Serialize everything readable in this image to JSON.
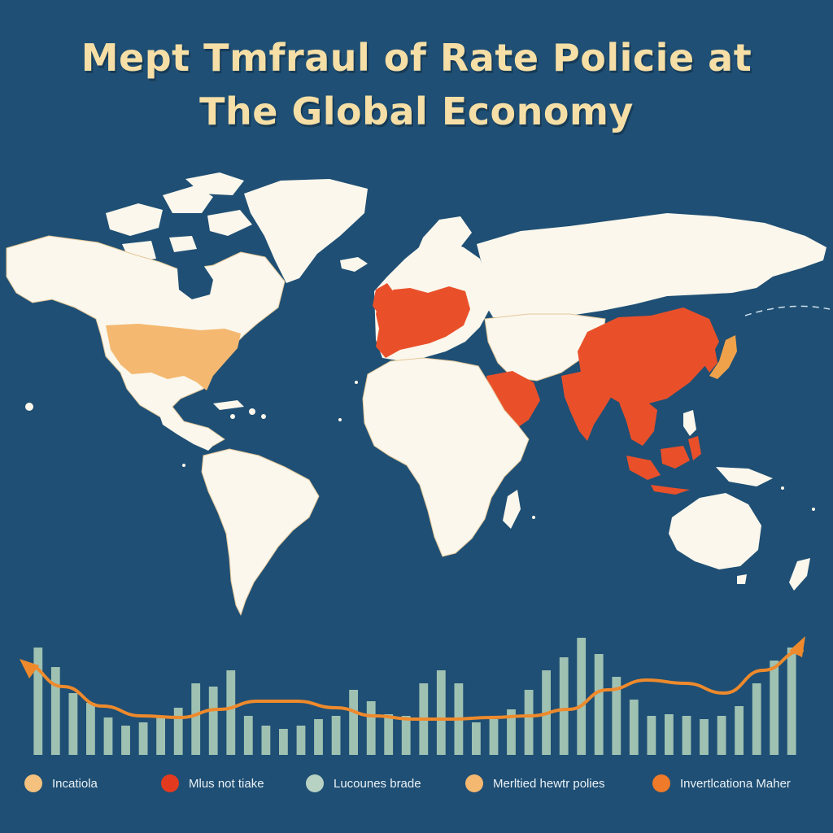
{
  "title": {
    "line1": "Mept Tmfraul of Rate Policie at",
    "line2": "The Global Economy"
  },
  "colors": {
    "background": "#1f4f74",
    "land": "#fbf7ec",
    "border": "#e3c79a",
    "usa": "#f4b870",
    "highlight_red": "#e9502a",
    "japan": "#f0a24a",
    "bars": "#9fc1b2",
    "trend_line": "#ee8a2c",
    "title": "#f6dfa6"
  },
  "map": {
    "highlighted_regions": [
      {
        "region": "united-states",
        "category": "Incatiola"
      },
      {
        "region": "western-europe",
        "category": "Mlus not tiake"
      },
      {
        "region": "arabian-peninsula",
        "category": "Mlus not tiake"
      },
      {
        "region": "china",
        "category": "Mlus not tiake"
      },
      {
        "region": "india",
        "category": "Mlus not tiake"
      },
      {
        "region": "southeast-asia",
        "category": "Mlus not tiake"
      },
      {
        "region": "japan",
        "category": "Merltied hewtr polies"
      }
    ]
  },
  "chart_data": {
    "type": "bar",
    "values": [
      66,
      54,
      38,
      32,
      23,
      18,
      20,
      24,
      29,
      44,
      42,
      52,
      24,
      18,
      16,
      18,
      22,
      24,
      40,
      33,
      25,
      24,
      44,
      52,
      44,
      20,
      22,
      28,
      40,
      52,
      60,
      72,
      62,
      48,
      34,
      24,
      25,
      24,
      22,
      24,
      30,
      44,
      58,
      66
    ],
    "trend": [
      56,
      42,
      30,
      24,
      23,
      28,
      33,
      33,
      29,
      24,
      22,
      22,
      23,
      24,
      28,
      40,
      46,
      44,
      38,
      52,
      64
    ],
    "ylim": [
      0,
      80
    ]
  },
  "legend": [
    {
      "label": "Incatiola",
      "color": "#f4c27e"
    },
    {
      "label": "Mlus not tiake",
      "color": "#e33a1f"
    },
    {
      "label": "Lucounes brade",
      "color": "#b7d1c3"
    },
    {
      "label": "Merltied hewtr polies",
      "color": "#f4b870"
    },
    {
      "label": "Invertlcationa Maher",
      "color": "#ef7a2a"
    }
  ]
}
